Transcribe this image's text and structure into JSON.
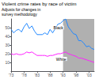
{
  "chart_data": {
    "type": "line",
    "title": "Violent crime rates by race of victim",
    "subtitle": [
      "Adjusts for changes in",
      "survey methodology"
    ],
    "x": [
      1973,
      1974,
      1975,
      1976,
      1977,
      1978,
      1979,
      1980,
      1981,
      1982,
      1983,
      1984,
      1985,
      1986,
      1987,
      1988,
      1989,
      1990,
      1991,
      1992,
      1993,
      1994,
      1995,
      1996,
      1997,
      1998,
      1999,
      2000,
      2001,
      2002,
      2003,
      2004,
      2005
    ],
    "series": [
      {
        "name": "Black",
        "color": "#2288ff",
        "values": [
          48,
          44,
          47,
          48,
          45,
          51,
          55,
          49,
          52,
          46,
          42,
          42,
          42,
          44,
          42,
          48,
          44,
          49,
          54,
          55,
          58,
          60,
          51,
          47,
          43,
          42,
          35,
          35,
          32,
          28,
          29,
          26,
          25
        ]
      },
      {
        "name": "White",
        "color": "#ff22ff",
        "values": [
          20,
          19,
          20,
          19,
          19,
          20,
          22,
          21,
          22,
          20,
          18,
          18,
          18,
          18,
          17,
          18,
          18,
          19,
          20,
          20,
          21,
          22,
          20,
          19,
          18,
          17,
          15,
          15,
          14,
          13,
          12,
          11,
          10
        ]
      }
    ],
    "xlim": [
      1973,
      2005
    ],
    "xticks": [
      {
        "value": 1973,
        "label": "'73"
      },
      {
        "value": 1978,
        "label": "'78"
      },
      {
        "value": 1983,
        "label": "'83"
      },
      {
        "value": 1988,
        "label": "'88"
      },
      {
        "value": 1993,
        "label": "'93"
      },
      {
        "value": 1998,
        "label": "'98"
      },
      {
        "value": 2003,
        "label": "'03"
      }
    ],
    "ylim": [
      0,
      60
    ],
    "yticks": [
      10,
      20,
      30,
      40,
      50
    ],
    "grid": false,
    "annotations": [
      {
        "text": "Black",
        "x": 1989,
        "y": 50
      },
      {
        "text": "White",
        "x": 1990,
        "y": 14
      }
    ],
    "bands": [
      {
        "from": 1993,
        "color": "#b0b0b0"
      }
    ]
  }
}
